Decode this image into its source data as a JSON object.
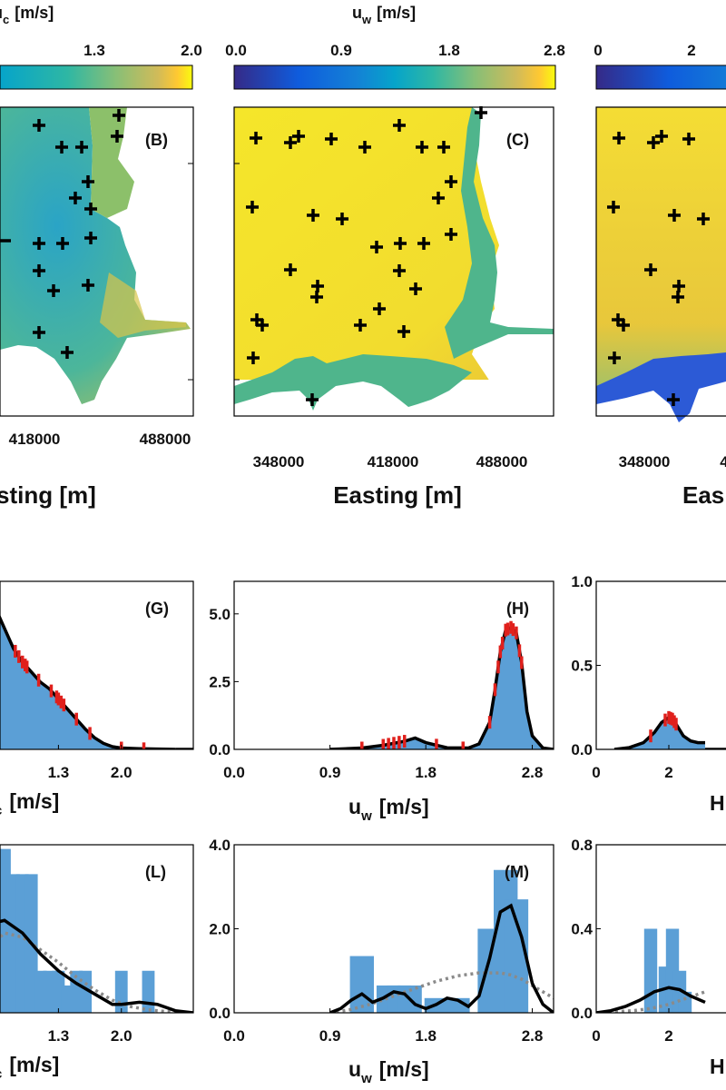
{
  "colorbars": [
    {
      "id": "c",
      "title": "u",
      "title_sub": "c",
      "title_unit": "[m/s]",
      "ticks": [
        "1.3",
        "2.0"
      ]
    },
    {
      "id": "w",
      "title": "u",
      "title_sub": "w",
      "title_unit": "[m/s]",
      "ticks": [
        "0.0",
        "0.9",
        "1.8",
        "2.8"
      ]
    },
    {
      "id": "h",
      "ticks": [
        "0",
        "2"
      ]
    }
  ],
  "maps": [
    {
      "label": "(B)",
      "xticks": [
        "418000",
        "488000"
      ],
      "xlabel": "sting [m]"
    },
    {
      "label": "(C)",
      "xticks": [
        "348000",
        "418000",
        "488000"
      ],
      "xlabel": "Easting [m]"
    },
    {
      "label": "",
      "xticks": [
        "348000",
        "4"
      ],
      "xlabel": "Eas"
    }
  ],
  "colors": {
    "bar": "#5b9fd6",
    "kde": "#000000",
    "fit": "#8a8a8a",
    "obs": "#e0201c"
  },
  "chart_data": [
    {
      "type": "area",
      "panel": "G",
      "label": "(G)",
      "xlabel": "u",
      "xlabel_sub": "c",
      "xlabel_unit": "[m/s]",
      "xticks": [
        "1.3",
        "2.0"
      ],
      "yticks": [],
      "x": [
        0.5,
        0.6,
        0.7,
        0.8,
        0.9,
        1.0,
        1.1,
        1.2,
        1.3,
        1.4,
        1.5,
        1.6,
        1.7,
        1.8,
        1.9,
        2.0,
        2.2,
        2.4,
        2.6
      ],
      "y": [
        4.6,
        4.2,
        3.6,
        3.0,
        2.6,
        2.3,
        2.0,
        1.8,
        1.5,
        1.2,
        0.9,
        0.6,
        0.35,
        0.18,
        0.08,
        0.04,
        0.02,
        0.01,
        0.0
      ],
      "obs_x": [
        0.5,
        0.53,
        0.56,
        0.6,
        0.63,
        0.82,
        0.86,
        0.9,
        0.93,
        0.95,
        1.08,
        1.22,
        1.28,
        1.3,
        1.33,
        1.36,
        1.5,
        1.65,
        2.0,
        2.25
      ]
    },
    {
      "type": "area",
      "panel": "H",
      "label": "(H)",
      "xlabel": "u",
      "xlabel_sub": "w",
      "xlabel_unit": "[m/s]",
      "xticks": [
        "0.0",
        "0.9",
        "1.8",
        "2.8"
      ],
      "xlim": [
        0,
        3.0
      ],
      "yticks": [
        "0.0",
        "2.5",
        "5.0"
      ],
      "ylim": [
        0,
        6.2
      ],
      "x": [
        0.9,
        1.2,
        1.4,
        1.6,
        1.7,
        1.8,
        2.0,
        2.2,
        2.3,
        2.4,
        2.45,
        2.5,
        2.55,
        2.6,
        2.65,
        2.7,
        2.75,
        2.8,
        2.9,
        3.0
      ],
      "y": [
        0.0,
        0.05,
        0.15,
        0.3,
        0.42,
        0.25,
        0.06,
        0.05,
        0.2,
        1.0,
        2.2,
        3.6,
        4.4,
        4.5,
        4.3,
        3.2,
        1.4,
        0.5,
        0.05,
        0.0
      ],
      "obs_x": [
        1.2,
        1.4,
        1.45,
        1.5,
        1.55,
        1.6,
        1.9,
        2.15,
        2.4,
        2.45,
        2.48,
        2.5,
        2.52,
        2.55,
        2.57,
        2.6,
        2.62,
        2.65,
        2.68,
        2.7
      ]
    },
    {
      "type": "area",
      "panel": "",
      "label": "",
      "xlabel": "H",
      "xticks": [
        "0",
        "2"
      ],
      "xlim": [
        0,
        4
      ],
      "yticks": [
        "0.0",
        "0.5",
        "1.0"
      ],
      "ylim": [
        0,
        1.0
      ],
      "x": [
        0.5,
        0.9,
        1.3,
        1.6,
        1.8,
        2.0,
        2.1,
        2.2,
        2.4,
        2.6,
        2.8,
        3.0
      ],
      "y": [
        0.0,
        0.01,
        0.04,
        0.1,
        0.16,
        0.19,
        0.18,
        0.15,
        0.08,
        0.05,
        0.04,
        0.04
      ],
      "obs_x": [
        1.5,
        1.9,
        2.0,
        2.05,
        2.1,
        2.15,
        2.2
      ]
    },
    {
      "type": "bar",
      "panel": "L",
      "label": "(L)",
      "xlabel": "u",
      "xlabel_sub": "c",
      "xlabel_unit": "[m/s]",
      "xticks": [
        "1.3",
        "2.0"
      ],
      "yticks": [],
      "bars": [
        {
          "x": 0.6,
          "v": 3.9
        },
        {
          "x": 0.7,
          "v": 3.9
        },
        {
          "x": 0.8,
          "v": 3.3
        },
        {
          "x": 0.9,
          "v": 3.3
        },
        {
          "x": 1.0,
          "v": 3.3
        },
        {
          "x": 1.1,
          "v": 1.0
        },
        {
          "x": 1.2,
          "v": 1.0
        },
        {
          "x": 1.3,
          "v": 1.0
        },
        {
          "x": 1.4,
          "v": 0.65
        },
        {
          "x": 1.5,
          "v": 1.0
        },
        {
          "x": 1.6,
          "v": 1.0
        },
        {
          "x": 2.0,
          "v": 1.0
        },
        {
          "x": 2.3,
          "v": 1.0
        }
      ],
      "kde_x": [
        0.5,
        0.7,
        0.9,
        1.1,
        1.3,
        1.5,
        1.7,
        1.9,
        2.0,
        2.2,
        2.4,
        2.6,
        2.8
      ],
      "kde_y": [
        2.1,
        2.2,
        1.9,
        1.4,
        1.0,
        0.7,
        0.45,
        0.2,
        0.2,
        0.25,
        0.2,
        0.05,
        0.0
      ],
      "fit_x": [
        0.5,
        0.7,
        0.9,
        1.1,
        1.3,
        1.5,
        1.7,
        1.9,
        2.1,
        2.3,
        2.5,
        2.7,
        2.8
      ],
      "fit_y": [
        1.5,
        1.9,
        1.8,
        1.5,
        1.2,
        0.85,
        0.55,
        0.3,
        0.15,
        0.07,
        0.03,
        0.01,
        0.0
      ]
    },
    {
      "type": "bar",
      "panel": "M",
      "label": "(M)",
      "xlabel": "u",
      "xlabel_sub": "w",
      "xlabel_unit": "[m/s]",
      "xticks": [
        "0.0",
        "0.9",
        "1.8",
        "2.8"
      ],
      "xlim": [
        0,
        3.0
      ],
      "yticks": [
        "0.0",
        "2.0",
        "4.0"
      ],
      "ylim": [
        0,
        4.0
      ],
      "bars": [
        {
          "x": 1.2,
          "v": 1.35
        },
        {
          "x": 1.45,
          "v": 0.65
        },
        {
          "x": 1.55,
          "v": 0.65
        },
        {
          "x": 1.65,
          "v": 0.65
        },
        {
          "x": 1.9,
          "v": 0.35
        },
        {
          "x": 2.1,
          "v": 0.35
        },
        {
          "x": 2.4,
          "v": 2.0
        },
        {
          "x": 2.55,
          "v": 3.4
        },
        {
          "x": 2.65,
          "v": 2.7
        }
      ],
      "kde_x": [
        0.9,
        1.0,
        1.1,
        1.2,
        1.3,
        1.4,
        1.5,
        1.6,
        1.7,
        1.8,
        1.9,
        2.0,
        2.1,
        2.2,
        2.3,
        2.4,
        2.5,
        2.6,
        2.7,
        2.8,
        2.9,
        3.0
      ],
      "kde_y": [
        0.0,
        0.1,
        0.3,
        0.45,
        0.25,
        0.35,
        0.5,
        0.45,
        0.2,
        0.1,
        0.2,
        0.35,
        0.3,
        0.15,
        0.4,
        1.3,
        2.4,
        2.55,
        1.8,
        0.7,
        0.2,
        0.0
      ],
      "fit_x": [
        0.9,
        1.1,
        1.3,
        1.5,
        1.7,
        1.9,
        2.1,
        2.3,
        2.5,
        2.6,
        2.7,
        2.8,
        2.9,
        3.0
      ],
      "fit_y": [
        0.0,
        0.08,
        0.22,
        0.4,
        0.58,
        0.75,
        0.88,
        0.95,
        0.95,
        0.9,
        0.8,
        0.65,
        0.5,
        0.35
      ]
    },
    {
      "type": "bar",
      "panel": "",
      "label": "",
      "xlabel": "H",
      "xticks": [
        "0",
        "2"
      ],
      "xlim": [
        0,
        4
      ],
      "yticks": [
        "0.0",
        "0.4",
        "0.8"
      ],
      "ylim": [
        0,
        0.8
      ],
      "bars": [
        {
          "x": 1.5,
          "v": 0.4
        },
        {
          "x": 1.9,
          "v": 0.22
        },
        {
          "x": 2.1,
          "v": 0.4
        },
        {
          "x": 2.3,
          "v": 0.2
        },
        {
          "x": 2.45,
          "v": 0.1
        }
      ],
      "kde_x": [
        0,
        0.4,
        0.8,
        1.2,
        1.6,
        2.0,
        2.3,
        2.6,
        3.0
      ],
      "kde_y": [
        0.0,
        0.01,
        0.03,
        0.06,
        0.1,
        0.12,
        0.11,
        0.08,
        0.05
      ],
      "fit_x": [
        0,
        0.5,
        1.0,
        1.5,
        2.0,
        2.5,
        3.0
      ],
      "fit_y": [
        0.0,
        0.005,
        0.01,
        0.02,
        0.04,
        0.07,
        0.1
      ]
    }
  ]
}
